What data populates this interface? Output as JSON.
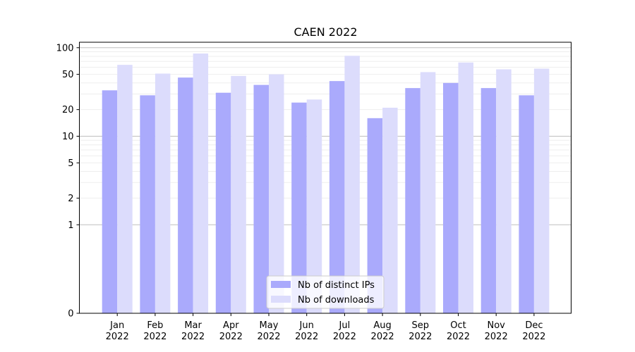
{
  "chart_data": {
    "type": "bar",
    "title": "CAEN 2022",
    "xlabel": "",
    "ylabel": "",
    "y_scale": "symlog",
    "ylim": [
      0,
      100
    ],
    "y_ticks": [
      0,
      1,
      2,
      5,
      10,
      20,
      50,
      100
    ],
    "categories": [
      [
        "Jan",
        "2022"
      ],
      [
        "Feb",
        "2022"
      ],
      [
        "Mar",
        "2022"
      ],
      [
        "Apr",
        "2022"
      ],
      [
        "May",
        "2022"
      ],
      [
        "Jun",
        "2022"
      ],
      [
        "Jul",
        "2022"
      ],
      [
        "Aug",
        "2022"
      ],
      [
        "Sep",
        "2022"
      ],
      [
        "Oct",
        "2022"
      ],
      [
        "Nov",
        "2022"
      ],
      [
        "Dec",
        "2022"
      ]
    ],
    "series": [
      {
        "name": "Nb of distinct IPs",
        "color": "#aaaafc",
        "values": [
          33,
          29,
          46,
          31,
          38,
          24,
          42,
          16,
          35,
          40,
          35,
          29
        ]
      },
      {
        "name": "Nb of downloads",
        "color": "#dcdcfc",
        "values": [
          64,
          51,
          86,
          48,
          50,
          26,
          81,
          21,
          53,
          68,
          57,
          58
        ]
      }
    ],
    "grid": true,
    "legend_position": "bottom-center"
  }
}
